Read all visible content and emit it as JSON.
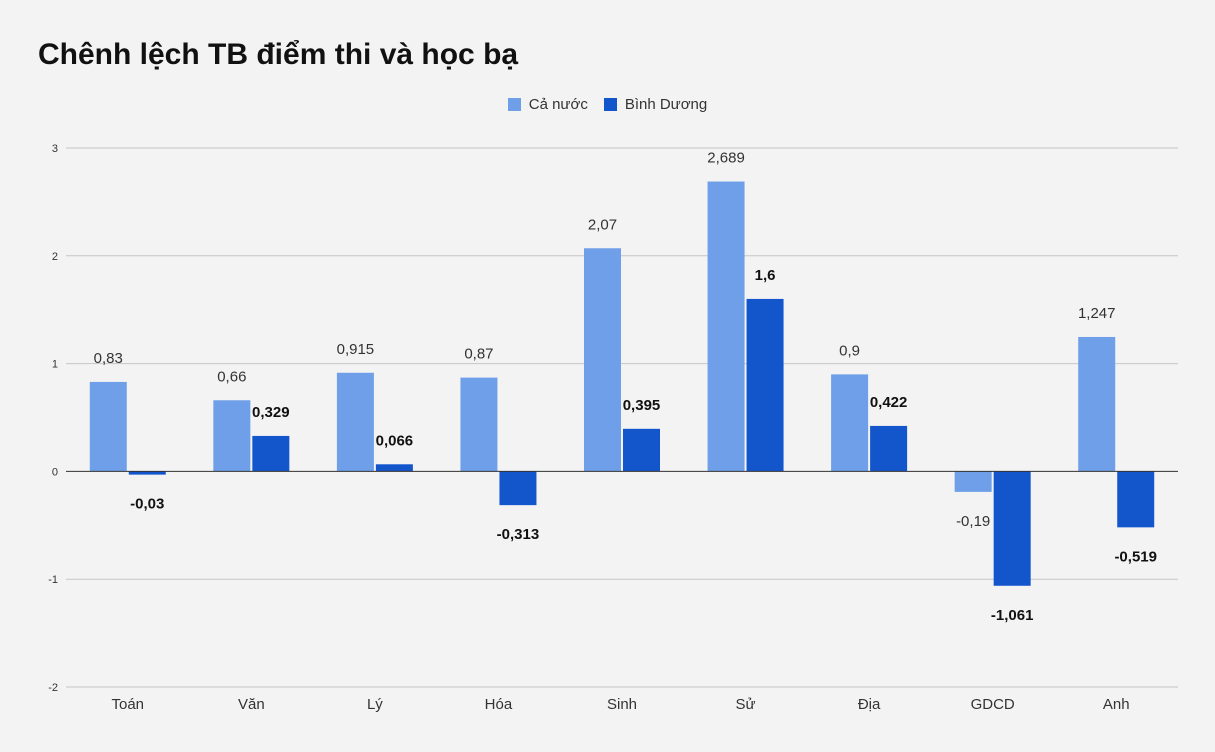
{
  "chart_data": {
    "type": "bar",
    "title": "Chênh lệch TB điểm thi và học bạ",
    "categories": [
      "Toán",
      "Văn",
      "Lý",
      "Hóa",
      "Sinh",
      "Sử",
      "Địa",
      "GDCD",
      "Anh"
    ],
    "series": [
      {
        "name": "Cả nước",
        "color": "#6e9fe8",
        "values": [
          0.83,
          0.66,
          0.915,
          0.87,
          2.07,
          2.689,
          0.9,
          -0.19,
          1.247
        ],
        "labels": [
          "0,83",
          "0,66",
          "0,915",
          "0,87",
          "2,07",
          "2,689",
          "0,9",
          "-0,19",
          "1,247"
        ]
      },
      {
        "name": "Bình Dương",
        "color": "#1356cc",
        "values": [
          -0.03,
          0.329,
          0.066,
          -0.313,
          0.395,
          1.6,
          0.422,
          -1.061,
          -0.519
        ],
        "labels": [
          "-0,03",
          "0,329",
          "0,066",
          "-0,313",
          "0,395",
          "1,6",
          "0,422",
          "-1,061",
          "-0,519"
        ]
      }
    ],
    "ylim": [
      -2,
      3
    ],
    "yticks": [
      3,
      2,
      1,
      0,
      -1,
      -2
    ],
    "legend_position": "top-center",
    "grid": true,
    "xlabel": "",
    "ylabel": ""
  }
}
